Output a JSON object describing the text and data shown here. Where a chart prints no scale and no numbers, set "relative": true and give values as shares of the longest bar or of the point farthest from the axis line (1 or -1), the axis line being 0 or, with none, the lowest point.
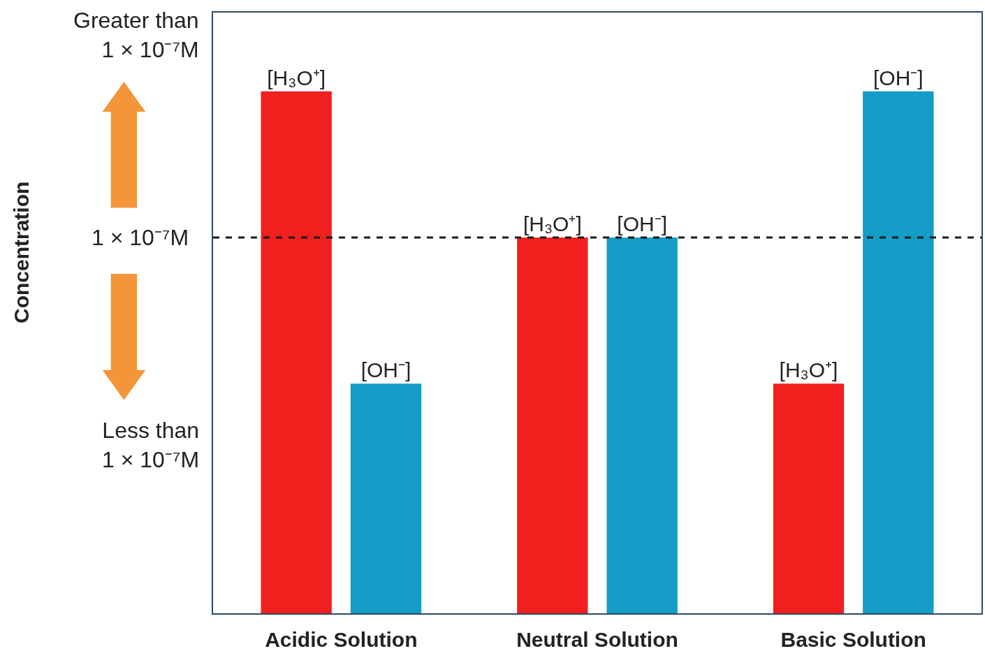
{
  "chart_data": {
    "type": "bar",
    "relative": true,
    "categories": [
      "Acidic Solution",
      "Neutral Solution",
      "Basic Solution"
    ],
    "series": [
      {
        "name": "[H₃O⁺]",
        "color": "#f21f1f",
        "values": [
          1,
          0.72,
          0.44
        ]
      },
      {
        "name": "[OH⁻]",
        "color": "#139dc7",
        "values": [
          0.44,
          0.72,
          1
        ]
      }
    ],
    "ref_lines": [
      {
        "axis": "y",
        "value": 0.72,
        "label": "1 × 10⁻⁷M",
        "color": "#1a1a1a",
        "line_style": "dashed"
      }
    ],
    "annotations": [
      "Greater than 1 × 10⁻⁷M",
      "Less than 1 × 10⁻⁷M",
      "Concentration"
    ],
    "legend": false
  }
}
